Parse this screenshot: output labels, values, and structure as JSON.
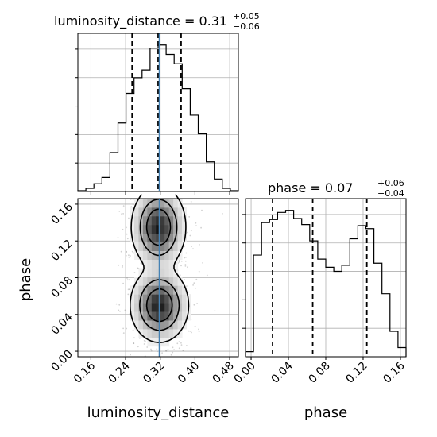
{
  "chart_data": {
    "type": "corner",
    "colors": {
      "hist": "#000000",
      "truth": "#4682b4",
      "grid": "#b0b0b0",
      "quantile": "#000000",
      "scatter": "#7f7f7f"
    },
    "parameters": [
      {
        "name": "luminosity_distance",
        "title": {
          "prefix": "luminosity_distance = 0.31",
          "plus": "+0.05",
          "minus": "−0.06"
        },
        "range": [
          0.13,
          0.5
        ],
        "ticks": [
          0.16,
          0.24,
          0.32,
          0.4,
          0.48
        ],
        "tick_labels": [
          "0.16",
          "0.24",
          "0.32",
          "0.40",
          "0.48"
        ],
        "quantiles": [
          0.255,
          0.315,
          0.368
        ],
        "truth": 0.318,
        "hist": {
          "bins": [
            0.13,
            0.1485,
            0.167,
            0.1855,
            0.204,
            0.2225,
            0.241,
            0.2595,
            0.278,
            0.2965,
            0.315,
            0.3335,
            0.352,
            0.3705,
            0.389,
            0.4075,
            0.426,
            0.4445,
            0.463,
            0.4815,
            0.5
          ],
          "counts": [
            0.5,
            2,
            5,
            9,
            25,
            44,
            63,
            73,
            78,
            92,
            94,
            88,
            82,
            66,
            49,
            37,
            19,
            8,
            2,
            0.5
          ]
        }
      },
      {
        "name": "phase",
        "title": {
          "prefix": "phase = 0.07",
          "plus": "+0.06",
          "minus": "−0.04"
        },
        "range": [
          -0.006,
          0.166
        ],
        "ticks": [
          0.0,
          0.04,
          0.08,
          0.12,
          0.16
        ],
        "tick_labels": [
          "0.00",
          "0.04",
          "0.08",
          "0.12",
          "0.16"
        ],
        "quantiles": [
          0.023,
          0.066,
          0.124
        ],
        "truth": null,
        "hist": {
          "bins": [
            -0.006,
            0.0026,
            0.0112,
            0.0198,
            0.0284,
            0.037,
            0.0456,
            0.0542,
            0.0628,
            0.0714,
            0.08,
            0.0886,
            0.0972,
            0.1058,
            0.1144,
            0.123,
            0.1316,
            0.1402,
            0.1488,
            0.1574,
            0.166
          ],
          "counts": [
            5,
            100,
            132,
            135,
            142,
            144,
            136,
            130,
            114,
            96,
            88,
            84,
            90,
            116,
            129,
            126,
            92,
            62,
            25,
            9
          ]
        }
      }
    ],
    "joint": {
      "x": "luminosity_distance",
      "y": "phase",
      "peaks": [
        {
          "x": 0.316,
          "y": 0.135,
          "sx": 0.028,
          "sy": 0.02,
          "w": 1.0
        },
        {
          "x": 0.318,
          "y": 0.05,
          "sx": 0.03,
          "sy": 0.018,
          "w": 1.0
        }
      ]
    }
  }
}
